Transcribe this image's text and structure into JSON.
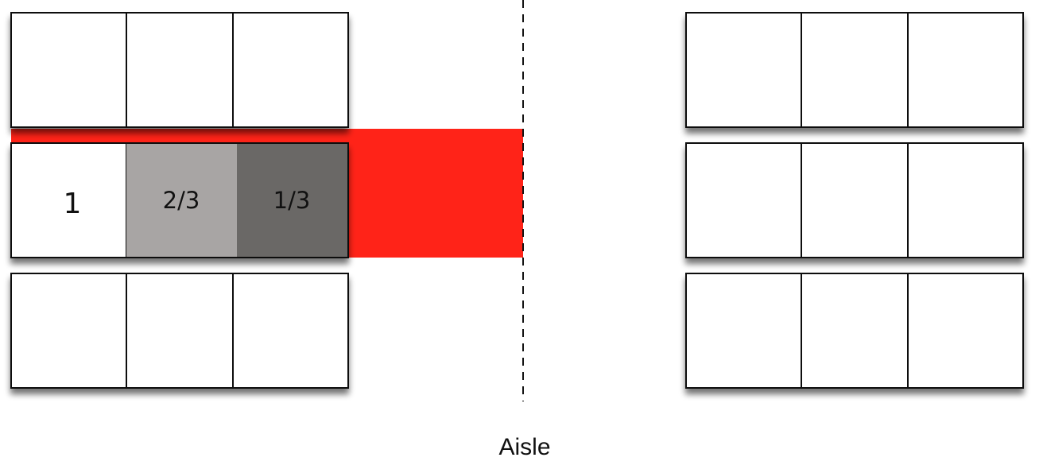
{
  "diagram": {
    "aisle_label": "Aisle",
    "row_labels": {
      "seat_1": "1",
      "seat_2": "2/3",
      "seat_3": "1/3"
    },
    "colors": {
      "red_bar": "#ff2318",
      "seat_2_fill": "#a8a5a4",
      "seat_3_fill": "#6a6766",
      "seat_default": "#ffffff",
      "stroke": "#111111"
    }
  }
}
